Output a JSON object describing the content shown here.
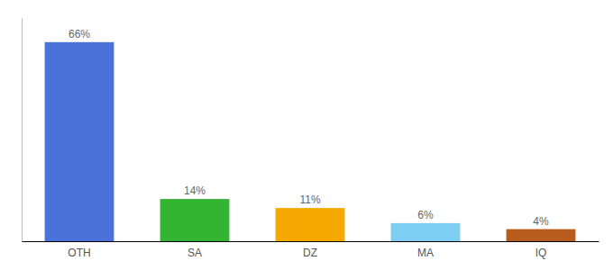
{
  "chart_data": {
    "type": "bar",
    "categories": [
      "OTH",
      "SA",
      "DZ",
      "MA",
      "IQ"
    ],
    "values": [
      66,
      14,
      11,
      6,
      4
    ],
    "value_labels": [
      "66%",
      "14%",
      "11%",
      "6%",
      "4%"
    ],
    "colors": [
      "#4a72d9",
      "#33b533",
      "#f5a800",
      "#7ecef4",
      "#b85c1e"
    ],
    "ylim": [
      0,
      74
    ],
    "data_labels": true,
    "tick_labels": "x"
  }
}
